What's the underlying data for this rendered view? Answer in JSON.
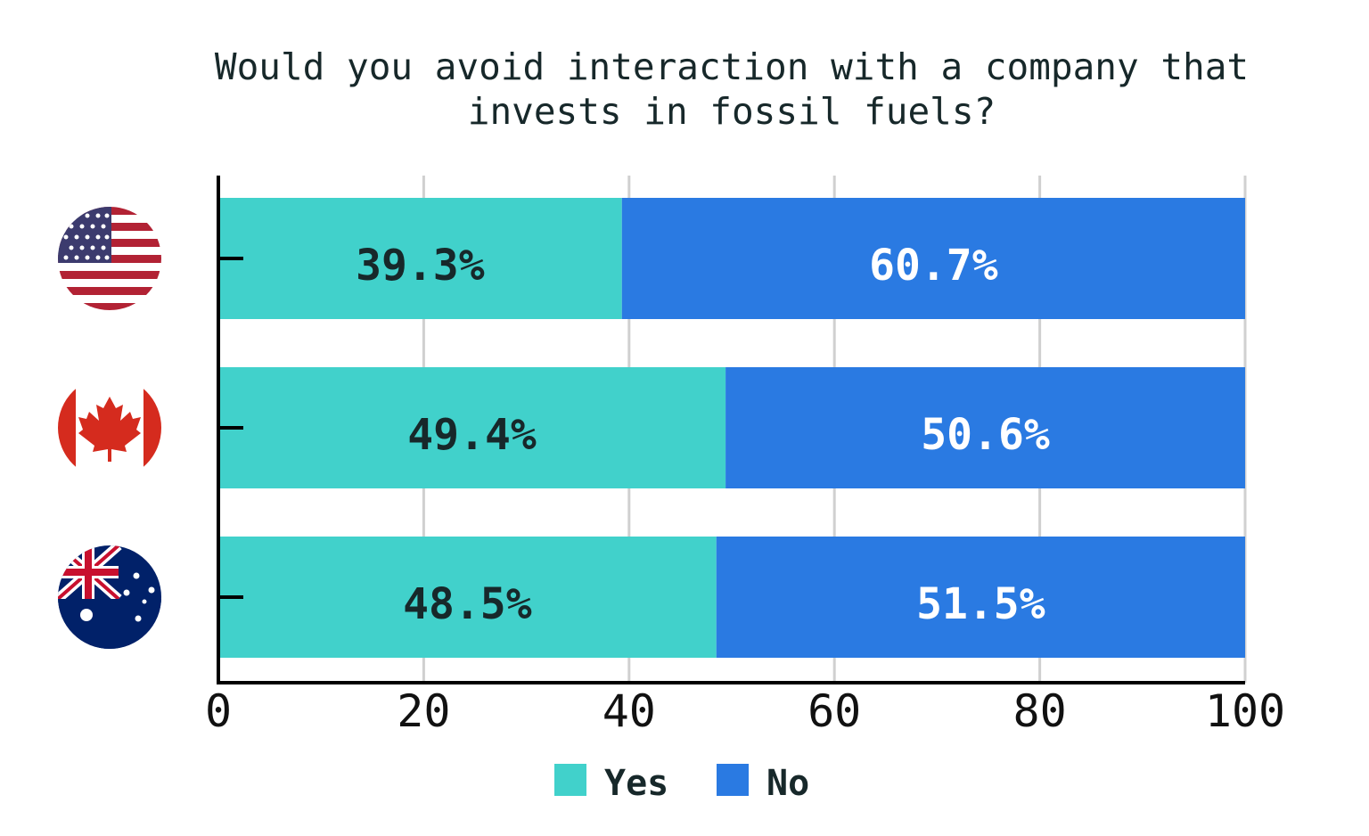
{
  "chart_data": {
    "type": "stacked-bar-horizontal",
    "title": "Would you avoid interaction with a company that invests in fossil fuels?",
    "categories": [
      null,
      null,
      null
    ],
    "series": [
      {
        "name": "Yes",
        "color": "#41d1cb",
        "label_color": "#17282a",
        "values": [
          39.3,
          49.4,
          48.5
        ],
        "value_labels": [
          "39.3%",
          "49.4%",
          "48.5%"
        ]
      },
      {
        "name": "No",
        "color": "#2a7ae2",
        "label_color": "#ffffff",
        "values": [
          60.7,
          50.6,
          51.5
        ],
        "value_labels": [
          "60.7%",
          "50.6%",
          "51.5%"
        ]
      }
    ],
    "xlim": [
      0,
      100
    ],
    "xticks": [
      0,
      20,
      40,
      60,
      80,
      100
    ],
    "grid": true
  }
}
